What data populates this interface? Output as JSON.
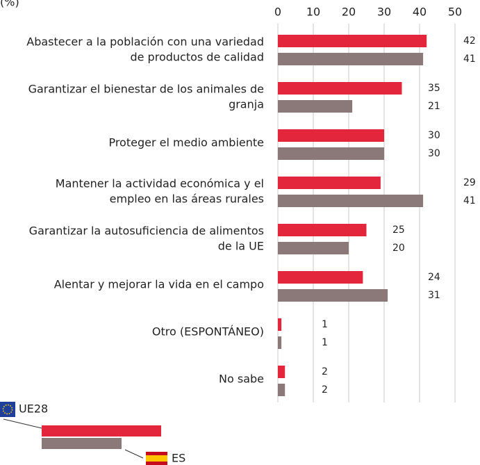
{
  "chart_data": {
    "type": "bar",
    "orientation": "horizontal",
    "subtitle": "(%)",
    "categories": [
      [
        "Abastecer a la población con una variedad",
        "de productos de calidad"
      ],
      [
        "Garantizar el bienestar de los animales de",
        "granja"
      ],
      [
        "Proteger el medio ambiente"
      ],
      [
        "Mantener la actividad económica y el",
        "empleo en las áreas rurales"
      ],
      [
        "Garantizar la autosuficiencia de alimentos",
        "de la UE"
      ],
      [
        "Alentar y mejorar la vida en el campo"
      ],
      [
        "Otro (ESPONTÁNEO)"
      ],
      [
        "No sabe"
      ]
    ],
    "series": [
      {
        "name": "UE28",
        "color": "#e3263b",
        "values": [
          42,
          35,
          30,
          29,
          25,
          24,
          1,
          2
        ]
      },
      {
        "name": "ES",
        "color": "#8b7879",
        "values": [
          41,
          21,
          30,
          41,
          20,
          31,
          1,
          2
        ]
      }
    ],
    "xlim": [
      0,
      50
    ],
    "xticks": [
      0,
      10,
      20,
      30,
      40,
      50
    ],
    "grid": true
  }
}
